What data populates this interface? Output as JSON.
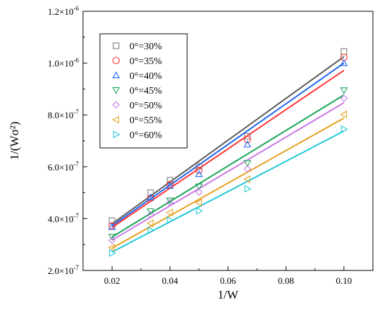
{
  "chart_data": {
    "type": "scatter",
    "title": "",
    "xlabel": "1/W",
    "ylabel": "1/(Wσ²)",
    "xlim": [
      0.01,
      0.11
    ],
    "ylim": [
      2e-07,
      1.2e-06
    ],
    "xticks": [
      0.02,
      0.04,
      0.06,
      0.08,
      0.1
    ],
    "xtick_labels": [
      "0.02",
      "0.04",
      "0.06",
      "0.08",
      "0.10"
    ],
    "yticks": [
      2e-07,
      4e-07,
      6e-07,
      8e-07,
      1e-06,
      1.2e-06
    ],
    "ytick_labels": [
      {
        "mant": "2.0×10",
        "exp": "-7"
      },
      {
        "mant": "4.0×10",
        "exp": "-7"
      },
      {
        "mant": "6.0×10",
        "exp": "-7"
      },
      {
        "mant": "8.0×10",
        "exp": "-7"
      },
      {
        "mant": "1.0×10",
        "exp": "-6"
      },
      {
        "mant": "1.2×10",
        "exp": "-6"
      }
    ],
    "grid": false,
    "legend_position": "top-left",
    "x": [
      0.02,
      0.0333,
      0.04,
      0.05,
      0.0667,
      0.1
    ],
    "series": [
      {
        "name": "0°=30%",
        "marker": "square",
        "color": "#7f7f7f",
        "line_color": "#595959",
        "values": [
          3.92e-07,
          5e-07,
          5.48e-07,
          6.02e-07,
          7.18e-07,
          1.045e-06
        ],
        "fit": [
          3.8e-07,
          1.025e-06
        ]
      },
      {
        "name": "0°=35%",
        "marker": "circle",
        "color": "#ff3333",
        "line_color": "#ff3333",
        "values": [
          3.72e-07,
          4.78e-07,
          5.32e-07,
          5.86e-07,
          7.05e-07,
          1.022e-06
        ],
        "fit": [
          3.66e-07,
          9.72e-07
        ]
      },
      {
        "name": "0°=40%",
        "marker": "triangle-up",
        "color": "#1e64f0",
        "line_color": "#1e64f0",
        "values": [
          3.68e-07,
          4.82e-07,
          5.27e-07,
          5.72e-07,
          6.86e-07,
          1e-06
        ],
        "fit": [
          3.72e-07,
          1e-06
        ]
      },
      {
        "name": "0°=45%",
        "marker": "triangle-down",
        "color": "#1aa65a",
        "line_color": "#1aa65a",
        "values": [
          3.3e-07,
          4.28e-07,
          4.7e-07,
          5.24e-07,
          6.14e-07,
          8.95e-07
        ],
        "fit": [
          3.29e-07,
          8.77e-07
        ]
      },
      {
        "name": "0°=50%",
        "marker": "diamond",
        "color": "#c878e6",
        "line_color": "#c878e6",
        "values": [
          3.16e-07,
          4.15e-07,
          4.62e-07,
          5.02e-07,
          5.92e-07,
          8.64e-07
        ],
        "fit": [
          3.17e-07,
          8.47e-07
        ]
      },
      {
        "name": "0°=55%",
        "marker": "triangle-left",
        "color": "#e6a01e",
        "line_color": "#e6a01e",
        "values": [
          2.88e-07,
          3.82e-07,
          4.24e-07,
          4.62e-07,
          5.52e-07,
          8.02e-07
        ],
        "fit": [
          2.86e-07,
          7.88e-07
        ]
      },
      {
        "name": "0°=60%",
        "marker": "triangle-right",
        "color": "#20c8d8",
        "line_color": "#20c8d8",
        "values": [
          2.67e-07,
          3.55e-07,
          3.94e-07,
          4.3e-07,
          5.15e-07,
          7.45e-07
        ],
        "fit": [
          2.71e-07,
          7.38e-07
        ]
      }
    ]
  }
}
